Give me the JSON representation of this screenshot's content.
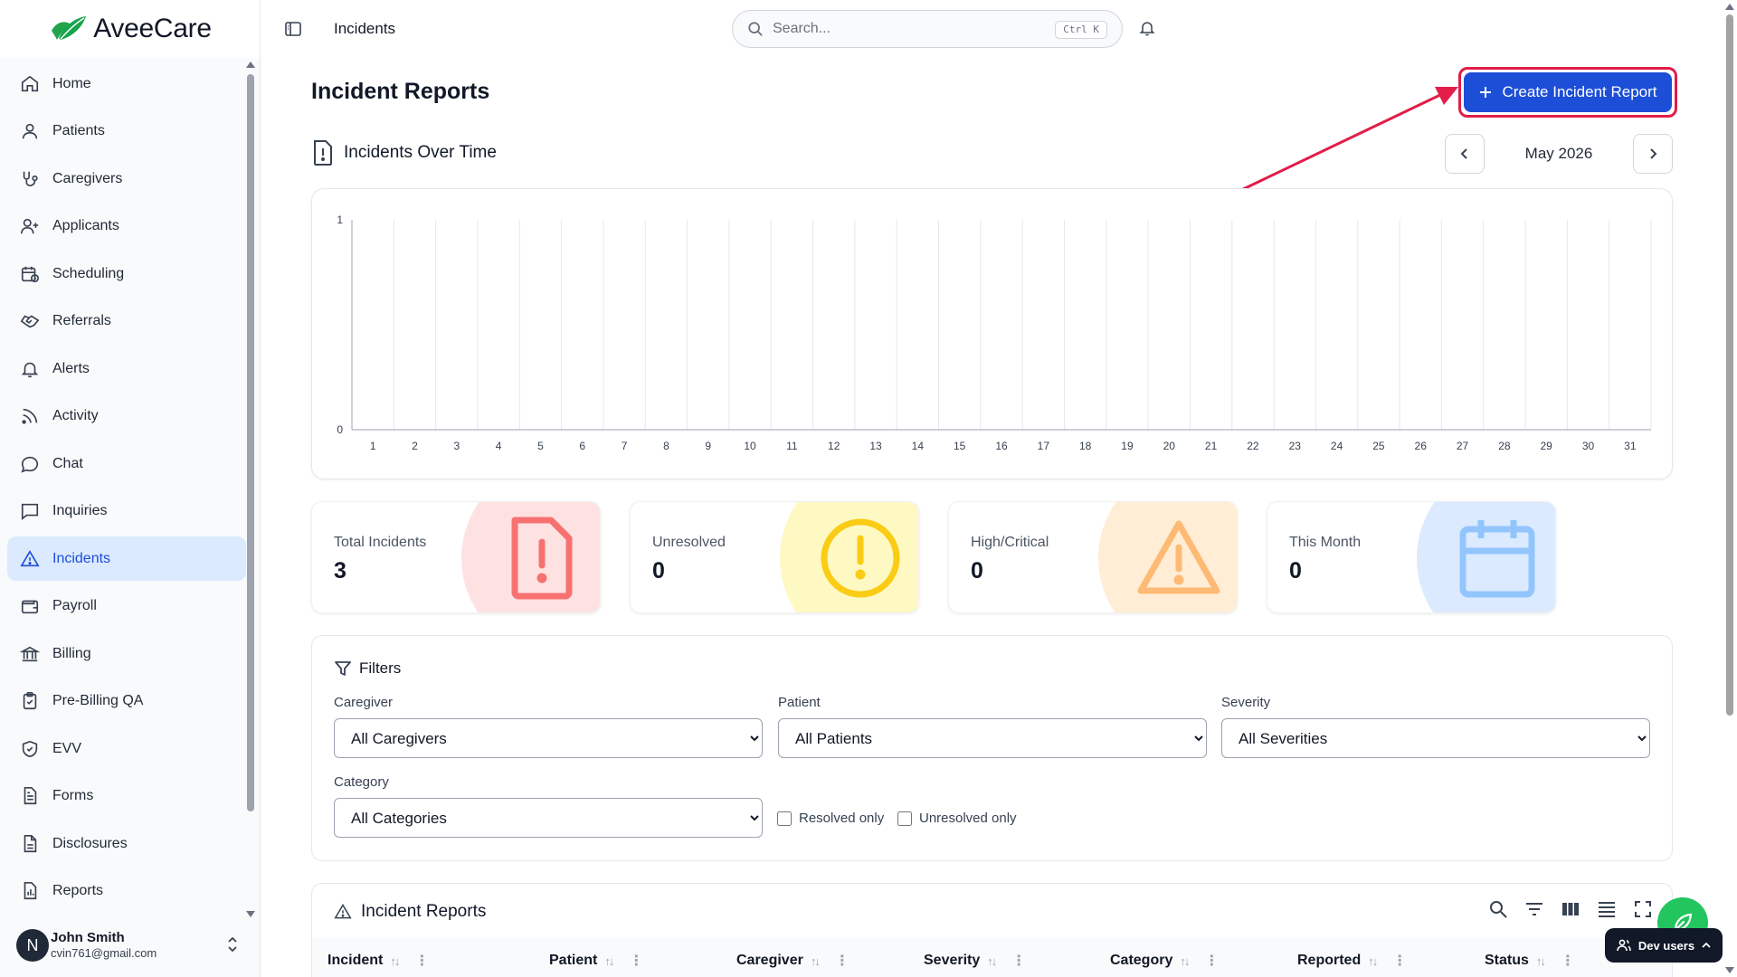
{
  "brand": {
    "name": "AveeCare"
  },
  "sidebar": {
    "items": [
      {
        "label": "Home",
        "icon": "home-icon"
      },
      {
        "label": "Patients",
        "icon": "user-icon"
      },
      {
        "label": "Caregivers",
        "icon": "stethoscope-icon"
      },
      {
        "label": "Applicants",
        "icon": "user-plus-icon"
      },
      {
        "label": "Scheduling",
        "icon": "calendar-clock-icon"
      },
      {
        "label": "Referrals",
        "icon": "handshake-icon"
      },
      {
        "label": "Alerts",
        "icon": "bell-icon"
      },
      {
        "label": "Activity",
        "icon": "rss-icon"
      },
      {
        "label": "Chat",
        "icon": "chat-bubble-icon"
      },
      {
        "label": "Inquiries",
        "icon": "message-square-icon"
      },
      {
        "label": "Incidents",
        "icon": "warning-triangle-icon",
        "active": true
      },
      {
        "label": "Payroll",
        "icon": "wallet-icon"
      },
      {
        "label": "Billing",
        "icon": "bank-icon"
      },
      {
        "label": "Pre-Billing QA",
        "icon": "clipboard-check-icon"
      },
      {
        "label": "EVV",
        "icon": "shield-check-icon"
      },
      {
        "label": "Forms",
        "icon": "file-text-icon"
      },
      {
        "label": "Disclosures",
        "icon": "file-icon"
      },
      {
        "label": "Reports",
        "icon": "file-chart-icon"
      }
    ],
    "user": {
      "initial": "N",
      "name": "John Smith",
      "email": "cvin761@gmail.com"
    }
  },
  "topbar": {
    "breadcrumb": "Incidents",
    "search_placeholder": "Search...",
    "search_shortcut": "Ctrl K"
  },
  "page": {
    "title": "Incident Reports",
    "create_button": "Create Incident Report"
  },
  "chart_section": {
    "title": "Incidents Over Time",
    "month": "May 2026"
  },
  "chart_data": {
    "type": "bar",
    "title": "",
    "xlabel": "",
    "ylabel": "",
    "categories": [
      "1",
      "2",
      "3",
      "4",
      "5",
      "6",
      "7",
      "8",
      "9",
      "10",
      "11",
      "12",
      "13",
      "14",
      "15",
      "16",
      "17",
      "18",
      "19",
      "20",
      "21",
      "22",
      "23",
      "24",
      "25",
      "26",
      "27",
      "28",
      "29",
      "30",
      "31"
    ],
    "values": [
      0,
      0,
      0,
      0,
      0,
      0,
      0,
      0,
      0,
      0,
      0,
      0,
      0,
      0,
      0,
      0,
      0,
      0,
      0,
      0,
      0,
      0,
      0,
      0,
      0,
      0,
      0,
      0,
      0,
      0,
      0
    ],
    "yticks": [
      "0",
      "1"
    ],
    "ylim": [
      0,
      1
    ],
    "grid": "vertical"
  },
  "stats": [
    {
      "label": "Total Incidents",
      "value": "3",
      "icon": "file-alert-icon",
      "color": "#f87171",
      "bg": "#fee2e2"
    },
    {
      "label": "Unresolved",
      "value": "0",
      "icon": "alert-circle-icon",
      "color": "#facc15",
      "bg": "#fef9c3"
    },
    {
      "label": "High/Critical",
      "value": "0",
      "icon": "warning-triangle-icon",
      "color": "#fdba74",
      "bg": "#ffedd5"
    },
    {
      "label": "This Month",
      "value": "0",
      "icon": "calendar-icon",
      "color": "#93c5fd",
      "bg": "#dbeafe"
    }
  ],
  "filters": {
    "title": "Filters",
    "caregiver": {
      "label": "Caregiver",
      "value": "All Caregivers"
    },
    "patient": {
      "label": "Patient",
      "value": "All Patients"
    },
    "severity": {
      "label": "Severity",
      "value": "All Severities"
    },
    "category": {
      "label": "Category",
      "value": "All Categories"
    },
    "resolved_only": "Resolved only",
    "unresolved_only": "Unresolved only"
  },
  "table": {
    "title": "Incident Reports",
    "columns": [
      "Incident",
      "Patient",
      "Caregiver",
      "Severity",
      "Category",
      "Reported",
      "Status"
    ]
  },
  "dev": {
    "label": "Dev users"
  },
  "colors": {
    "accent": "#1d4ed8",
    "annotation": "#e11d48",
    "active_nav_bg": "#dbeafe"
  }
}
